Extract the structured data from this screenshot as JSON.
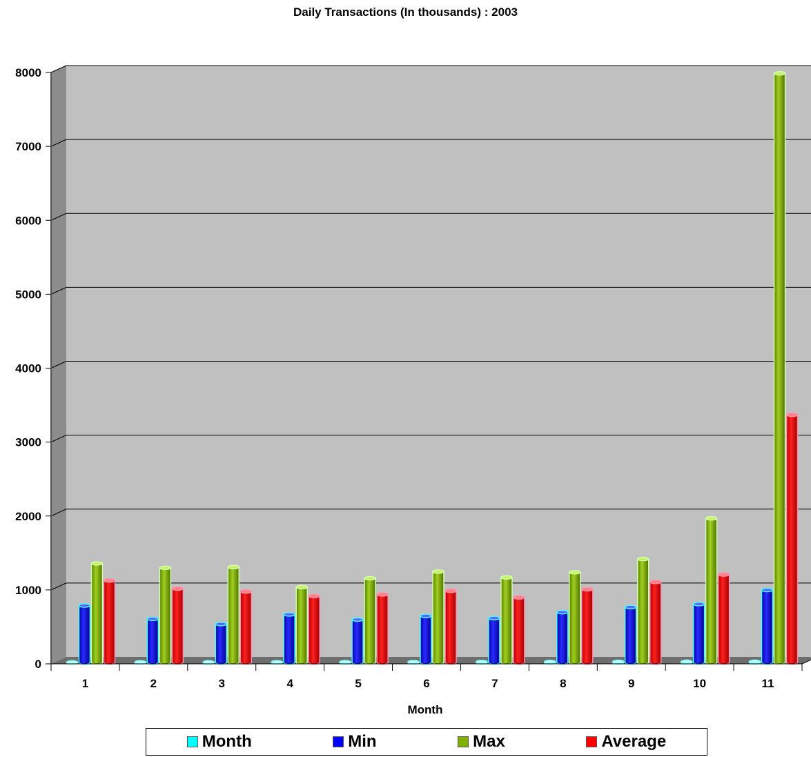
{
  "chart_data": {
    "type": "bar",
    "title": "Daily Transactions (In thousands) : 2003",
    "xlabel": "Month",
    "ylabel": "",
    "ylim": [
      0,
      8000
    ],
    "y_ticks": [
      "0",
      "1000",
      "2000",
      "3000",
      "4000",
      "5000",
      "6000",
      "7000",
      "8000"
    ],
    "categories": [
      "1",
      "2",
      "3",
      "4",
      "5",
      "6",
      "7",
      "8",
      "9",
      "10",
      "11"
    ],
    "grid": true,
    "legend_position": "bottom",
    "series": [
      {
        "name": "Month",
        "color": "#00ffff",
        "values": [
          1,
          2,
          3,
          4,
          5,
          6,
          7,
          8,
          9,
          10,
          11
        ]
      },
      {
        "name": "Min",
        "color": "#0000ff",
        "values": [
          770,
          590,
          520,
          650,
          580,
          630,
          600,
          680,
          750,
          790,
          980
        ]
      },
      {
        "name": "Max",
        "color": "#80b000",
        "values": [
          1340,
          1280,
          1290,
          1020,
          1140,
          1230,
          1150,
          1220,
          1400,
          1950,
          7970
        ]
      },
      {
        "name": "Average",
        "color": "#ff0000",
        "values": [
          1110,
          1000,
          960,
          900,
          920,
          970,
          880,
          990,
          1090,
          1190,
          3350
        ]
      }
    ]
  }
}
